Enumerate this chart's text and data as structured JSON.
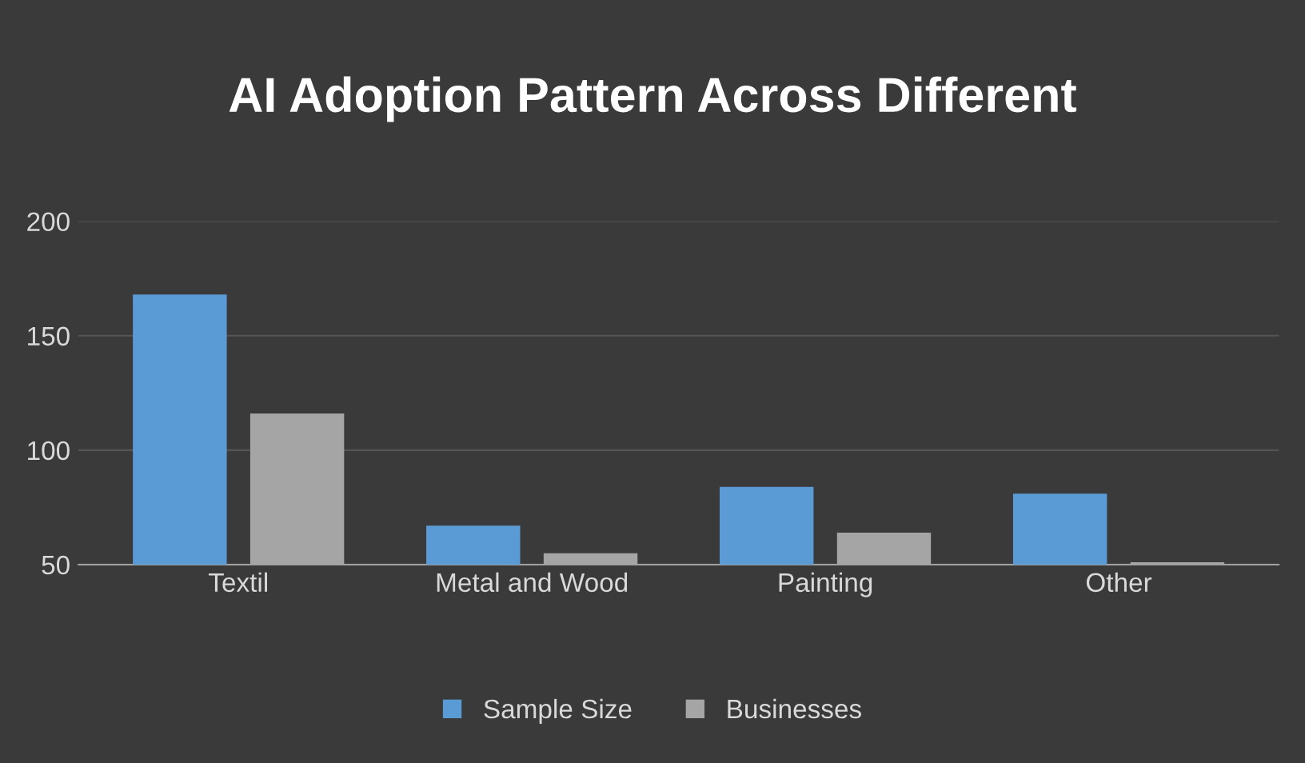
{
  "chart_data": {
    "type": "bar",
    "title": "AI Adoption Pattern Across Different",
    "categories": [
      "Textil",
      "Metal and Wood",
      "Painting",
      "Other"
    ],
    "series": [
      {
        "name": "Sample Size",
        "color": "#5b9bd5",
        "values": [
          168,
          67,
          84,
          81
        ]
      },
      {
        "name": "Businesses",
        "color": "#a5a5a5",
        "values": [
          116,
          55,
          64,
          51
        ]
      }
    ],
    "ylim": [
      50,
      200
    ],
    "yticks": [
      50,
      100,
      150,
      200
    ],
    "grid": "y",
    "legend": "bottom"
  }
}
